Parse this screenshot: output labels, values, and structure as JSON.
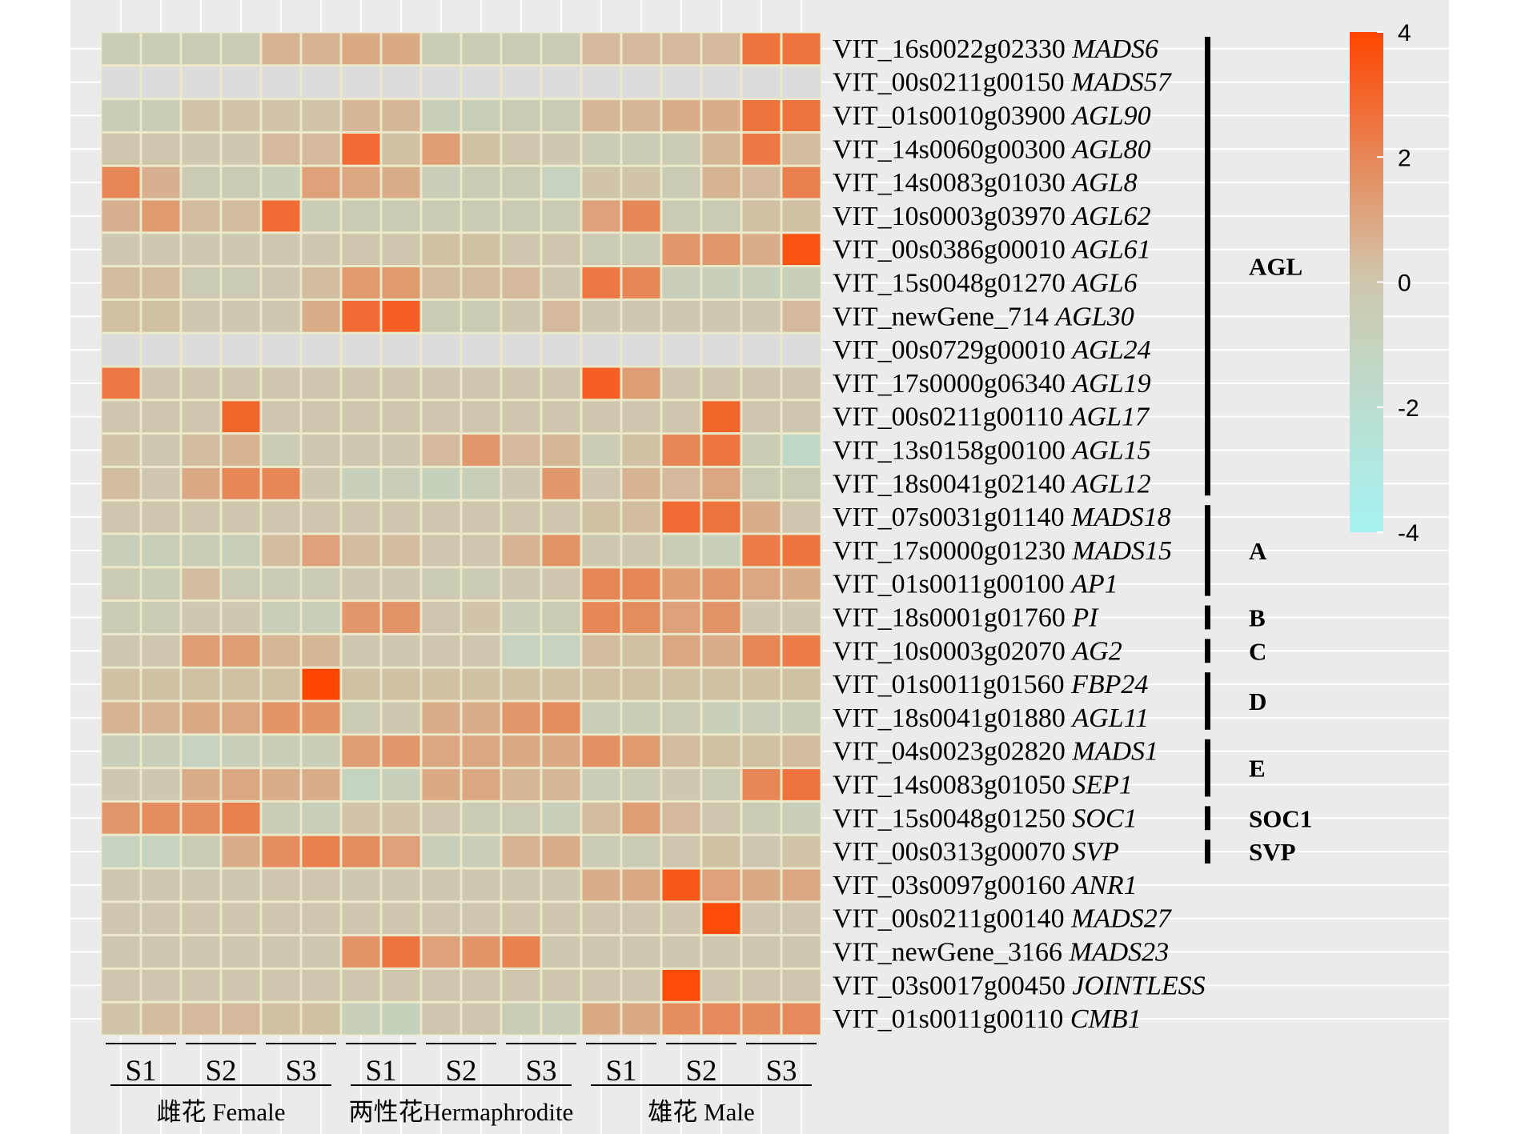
{
  "chart_data": {
    "type": "heatmap",
    "title": "",
    "xlabel": "",
    "ylabel": "",
    "grid": true,
    "legend_position": "top-right",
    "color_scale": {
      "min": -4,
      "max": 4,
      "ticks": [
        "4",
        "2",
        "0",
        "-2",
        "-4"
      ],
      "low_color": "#a7f3f3",
      "mid_color": "#cfc7ad",
      "high_color": "#ff4500",
      "na_color": "#dcdcdc"
    },
    "samples": [
      {
        "group": "雌花 Female",
        "stages": [
          {
            "label": "S1",
            "columns": 2
          },
          {
            "label": "S2",
            "columns": 2
          },
          {
            "label": "S3",
            "columns": 2
          }
        ]
      },
      {
        "group": "两性花Hermaphrodite",
        "stages": [
          {
            "label": "S1",
            "columns": 2
          },
          {
            "label": "S2",
            "columns": 2
          },
          {
            "label": "S3",
            "columns": 2
          }
        ]
      },
      {
        "group": "雄花 Male",
        "stages": [
          {
            "label": "S1",
            "columns": 2
          },
          {
            "label": "S2",
            "columns": 2
          },
          {
            "label": "S3",
            "columns": 2
          }
        ]
      }
    ],
    "rows": [
      {
        "id": "VIT_16s0022g02330",
        "name": "MADS6",
        "values": [
          -0.5,
          -0.5,
          -0.4,
          -0.4,
          0.6,
          0.6,
          0.9,
          0.9,
          -0.5,
          -0.4,
          -0.4,
          -0.4,
          0.4,
          0.4,
          0.4,
          0.4,
          2.6,
          2.6
        ]
      },
      {
        "id": "VIT_00s0211g00150",
        "name": "MADS57",
        "values": [
          null,
          null,
          null,
          null,
          null,
          null,
          null,
          null,
          null,
          null,
          null,
          null,
          null,
          null,
          null,
          null,
          null,
          null
        ]
      },
      {
        "id": "VIT_01s0010g03900",
        "name": "AGL90",
        "values": [
          -0.5,
          -0.5,
          0.1,
          0.1,
          0.1,
          0.1,
          0.5,
          0.5,
          -0.7,
          -0.7,
          -0.4,
          -0.4,
          0.5,
          0.5,
          0.8,
          0.8,
          2.6,
          2.6
        ]
      },
      {
        "id": "VIT_14s0060g00300",
        "name": "AGL80",
        "values": [
          0,
          0,
          -0.2,
          -0.2,
          0.4,
          0.4,
          2.8,
          0.2,
          1.3,
          0.2,
          0,
          -0.2,
          -0.3,
          -0.3,
          -0.3,
          0.5,
          2.4,
          0.3
        ]
      },
      {
        "id": "VIT_14s0083g01030",
        "name": "AGL8",
        "values": [
          2.0,
          0.7,
          -0.3,
          -0.3,
          -0.8,
          1.2,
          1.0,
          0.8,
          -0.6,
          -0.4,
          -0.4,
          -1.0,
          0.1,
          0.1,
          -0.4,
          0.6,
          0.4,
          2.2
        ]
      },
      {
        "id": "VIT_10s0003g03970",
        "name": "AGL62",
        "values": [
          0.7,
          1.4,
          0.3,
          0.3,
          2.8,
          -0.5,
          -0.4,
          -0.3,
          -0.3,
          -0.3,
          -0.3,
          -0.3,
          1.2,
          2.0,
          -0.4,
          -0.4,
          0.2,
          0.2
        ]
      },
      {
        "id": "VIT_00s0386g00010",
        "name": "AGL61",
        "values": [
          -0.2,
          -0.2,
          -0.2,
          -0.2,
          -0.2,
          -0.2,
          0,
          0,
          0.2,
          0.2,
          0,
          0,
          -0.3,
          -0.3,
          1.5,
          1.5,
          0.8,
          3.6
        ]
      },
      {
        "id": "VIT_15s0048g01270",
        "name": "AGL6",
        "values": [
          0.3,
          0.3,
          -0.3,
          -0.3,
          -0.2,
          0.3,
          1.4,
          1.4,
          0.3,
          0.3,
          0.4,
          -0.2,
          2.4,
          2.0,
          -0.6,
          -0.8,
          -0.8,
          -0.8
        ]
      },
      {
        "id": "VIT_newGene_714",
        "name": "AGL30",
        "values": [
          0.2,
          0.2,
          -0.2,
          -0.2,
          -0.2,
          0.8,
          2.8,
          3.2,
          -0.3,
          -0.3,
          -0.1,
          0.4,
          -0.2,
          -0.2,
          -0.2,
          -0.2,
          -0.2,
          0.4
        ]
      },
      {
        "id": "VIT_00s0729g00010",
        "name": "AGL24",
        "values": [
          null,
          null,
          null,
          null,
          null,
          null,
          null,
          null,
          null,
          null,
          null,
          null,
          null,
          null,
          null,
          null,
          null,
          null
        ]
      },
      {
        "id": "VIT_17s0000g06340",
        "name": "AGL19",
        "values": [
          2.4,
          0,
          0,
          0,
          0,
          0,
          0,
          0,
          0,
          0,
          0,
          0,
          3.2,
          1.3,
          0,
          0,
          0,
          0
        ]
      },
      {
        "id": "VIT_00s0211g00110",
        "name": "AGL17",
        "values": [
          0,
          0,
          0,
          3.0,
          0,
          0,
          0,
          0,
          0,
          0,
          0,
          0,
          0,
          0,
          0,
          3.0,
          0,
          0
        ]
      },
      {
        "id": "VIT_13s0158g00100",
        "name": "AGL15",
        "values": [
          0.1,
          -0.2,
          0.3,
          0.6,
          -0.4,
          -0.1,
          -0.2,
          -0.2,
          0.4,
          1.5,
          0.4,
          0.5,
          -0.3,
          0.2,
          2.0,
          2.5,
          -0.4,
          -1.5
        ]
      },
      {
        "id": "VIT_18s0041g02140",
        "name": "AGL12",
        "values": [
          0.3,
          0,
          0.9,
          2.0,
          2.0,
          -0.2,
          -0.8,
          -0.6,
          -0.9,
          -0.7,
          -0.2,
          1.5,
          0,
          0.6,
          0.4,
          1.0,
          -0.4,
          -0.4
        ]
      },
      {
        "id": "VIT_07s0031g01140",
        "name": "MADS18",
        "values": [
          0,
          0,
          0,
          0,
          0,
          0,
          0,
          0,
          0,
          0,
          0,
          0,
          0.2,
          0.3,
          2.8,
          2.6,
          0.8,
          0
        ]
      },
      {
        "id": "VIT_17s0000g01230",
        "name": "MADS15",
        "values": [
          -0.7,
          -0.7,
          -0.5,
          -0.7,
          0.3,
          1.2,
          0.3,
          0.3,
          0,
          0,
          0.6,
          1.6,
          -0.2,
          -0.2,
          -0.5,
          -0.8,
          2.3,
          2.6
        ]
      },
      {
        "id": "VIT_01s0011g00100",
        "name": "AP1",
        "values": [
          -0.3,
          -0.5,
          0.3,
          -0.3,
          -0.3,
          -0.3,
          -0.2,
          -0.2,
          -0.3,
          -0.3,
          -0.2,
          0,
          2.0,
          2.0,
          1.3,
          1.5,
          1.0,
          0.8
        ]
      },
      {
        "id": "VIT_18s0001g01760",
        "name": "PI",
        "values": [
          -0.3,
          -0.3,
          -0.2,
          -0.2,
          -0.7,
          -0.7,
          1.5,
          1.6,
          0,
          0.1,
          -0.6,
          -0.4,
          2.0,
          1.8,
          1.2,
          1.6,
          -0.2,
          -0.2
        ]
      },
      {
        "id": "VIT_10s0003g02070",
        "name": "AG2",
        "values": [
          -0.2,
          0,
          1.3,
          1.3,
          0.5,
          0.5,
          -0.2,
          -0.2,
          0,
          0,
          -1.0,
          -1.0,
          0.3,
          0.2,
          1.0,
          0.8,
          2.0,
          2.3
        ]
      },
      {
        "id": "VIT_01s0011g01560",
        "name": "FBP24",
        "values": [
          0.2,
          0.2,
          0.2,
          0.2,
          0.2,
          4.0,
          0.2,
          0.2,
          0.2,
          0.2,
          0.2,
          0.2,
          0.2,
          0.2,
          0.2,
          0.2,
          0.2,
          0.2
        ]
      },
      {
        "id": "VIT_18s0041g01880",
        "name": "AGL11",
        "values": [
          0.6,
          0.6,
          0.9,
          1.0,
          1.6,
          1.6,
          -0.3,
          -0.2,
          0.8,
          0.8,
          1.5,
          1.8,
          -0.6,
          -0.5,
          -0.4,
          -0.8,
          -0.6,
          -0.5
        ]
      },
      {
        "id": "VIT_04s0023g02820",
        "name": "MADS1",
        "values": [
          -0.6,
          -0.6,
          -1.0,
          -0.7,
          -0.5,
          -0.5,
          1.3,
          1.5,
          1.0,
          1.0,
          0.9,
          0.9,
          1.7,
          1.4,
          0.3,
          0.2,
          0.2,
          0.3
        ]
      },
      {
        "id": "VIT_14s0083g01050",
        "name": "SEP1",
        "values": [
          -0.2,
          -0.2,
          0.8,
          1.0,
          0.8,
          0.8,
          -1.1,
          -0.8,
          0.9,
          1.0,
          0.5,
          0.5,
          -0.6,
          -0.4,
          -0.2,
          -0.3,
          2.0,
          2.6
        ]
      },
      {
        "id": "VIT_15s0048g01250",
        "name": "SOC1",
        "values": [
          1.5,
          1.8,
          1.8,
          2.2,
          -0.5,
          -0.7,
          0.1,
          0.1,
          0,
          -0.4,
          -0.3,
          -0.7,
          0.3,
          1.3,
          0.4,
          0,
          -0.4,
          -0.6
        ]
      },
      {
        "id": "VIT_00s0313g00070",
        "name": "SVP",
        "values": [
          -1.0,
          -1.0,
          -0.4,
          0.8,
          1.8,
          2.2,
          1.8,
          1.2,
          -0.7,
          -0.6,
          0.6,
          0.8,
          -0.3,
          -0.3,
          0,
          0.2,
          -0.2,
          0.1
        ]
      },
      {
        "id": "VIT_03s0097g00160",
        "name": "ANR1",
        "values": [
          -0.2,
          -0.2,
          -0.2,
          -0.2,
          0,
          0,
          -0.2,
          -0.2,
          -0.2,
          -0.2,
          -0.2,
          -0.2,
          0.8,
          0.9,
          3.4,
          1.2,
          0.9,
          1.0
        ]
      },
      {
        "id": "VIT_00s0211g00140",
        "name": "MADS27",
        "values": [
          0,
          0,
          0,
          0,
          0,
          0,
          0,
          0,
          0,
          0,
          0,
          0,
          0,
          0,
          0,
          3.8,
          0,
          0
        ]
      },
      {
        "id": "VIT_newGene_3166",
        "name": "MADS23",
        "values": [
          -0.2,
          -0.2,
          -0.2,
          -0.2,
          -0.2,
          -0.2,
          1.6,
          2.6,
          1.2,
          1.6,
          2.2,
          -0.2,
          -0.2,
          -0.2,
          -0.2,
          -0.2,
          -0.2,
          -0.2
        ]
      },
      {
        "id": "VIT_03s0017g00450",
        "name": "JOINTLESS",
        "values": [
          0,
          0,
          0,
          0,
          0,
          0,
          0,
          0,
          0,
          0,
          0,
          0,
          0,
          0,
          3.8,
          0,
          0,
          0
        ]
      },
      {
        "id": "VIT_01s0011g00110",
        "name": "CMB1",
        "values": [
          0.1,
          0.3,
          0.4,
          0.4,
          0.2,
          0.2,
          -0.7,
          -0.9,
          0,
          0,
          -0.5,
          -0.6,
          0.9,
          0.9,
          1.8,
          1.9,
          1.8,
          1.9
        ]
      }
    ],
    "gene_groups": [
      {
        "label": "AGL",
        "first_row": 0,
        "last_row": 13
      },
      {
        "label": "A",
        "first_row": 14,
        "last_row": 16
      },
      {
        "label": "B",
        "first_row": 17,
        "last_row": 17
      },
      {
        "label": "C",
        "first_row": 18,
        "last_row": 18
      },
      {
        "label": "D",
        "first_row": 19,
        "last_row": 20
      },
      {
        "label": "E",
        "first_row": 21,
        "last_row": 22
      },
      {
        "label": "SOC1",
        "first_row": 23,
        "last_row": 23
      },
      {
        "label": "SVP",
        "first_row": 24,
        "last_row": 24
      }
    ]
  }
}
